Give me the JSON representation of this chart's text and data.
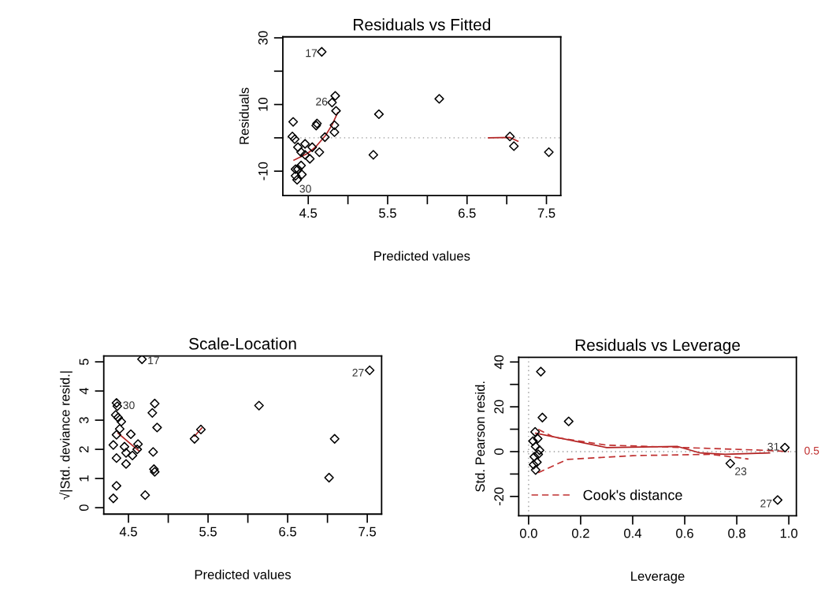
{
  "chart_data": [
    {
      "type": "scatter",
      "title": "Residuals vs Fitted",
      "xlabel": "Predicted values",
      "ylabel": "Residuals",
      "xlim": [
        4.18,
        7.68
      ],
      "ylim": [
        -17.3,
        30.3
      ],
      "xticks": [
        4.5,
        {
          "value": 5.0,
          "label": null
        },
        5.5,
        {
          "value": 6.0,
          "label": null
        },
        6.5,
        {
          "value": 7.0,
          "label": null
        },
        7.5
      ],
      "yticks": [
        -10,
        {
          "value": 0,
          "label": null
        },
        10,
        {
          "value": 20,
          "label": null
        },
        30
      ],
      "ref_lines": [
        {
          "axis": "y",
          "value": 0,
          "color": "#999999",
          "line_style": "dotted"
        }
      ],
      "series": [
        {
          "marker": "diamond",
          "color": "#000000",
          "x": [
            4.67,
            4.84,
            4.8,
            4.85,
            5.39,
            6.15,
            4.31,
            4.61,
            4.6,
            4.83,
            4.83,
            4.71,
            4.3,
            4.33,
            4.46,
            4.37,
            4.55,
            4.64,
            4.41,
            4.52,
            4.46,
            4.41,
            4.34,
            4.37,
            4.42,
            4.34,
            4.36,
            5.32,
            7.04,
            7.09,
            7.53
          ],
          "values": [
            25.8,
            12.6,
            10.6,
            8.1,
            7.1,
            11.7,
            4.8,
            4.3,
            3.7,
            3.8,
            1.7,
            0.2,
            0.4,
            -0.4,
            -1.8,
            -2.8,
            -2.8,
            -4.3,
            -4.3,
            -6.3,
            -5.1,
            -8.3,
            -9.4,
            -9.4,
            -11.0,
            -11.4,
            -12.6,
            -5.1,
            0.4,
            -2.5,
            -4.3
          ]
        },
        {
          "type": "line",
          "line_style": "solid",
          "color": "#b22222",
          "x": [
            4.32,
            4.49,
            4.59,
            4.72,
            4.8,
            4.87
          ],
          "values": [
            -6.7,
            -4.7,
            -2.8,
            0.8,
            3.9,
            7.5
          ]
        },
        {
          "type": "line",
          "line_style": "solid",
          "color": "#b22222",
          "x": [
            6.77,
            7.04,
            7.14
          ],
          "values": [
            0,
            0.1,
            -1.0
          ]
        }
      ],
      "annotations": [
        {
          "text": "17",
          "x": 4.67,
          "y": 25.8
        },
        {
          "text": "26",
          "x": 4.8,
          "y": 10.6
        },
        {
          "text": "30",
          "x": 4.36,
          "y": -12.6
        }
      ]
    },
    {
      "type": "scatter",
      "title": "Scale-Location",
      "xlabel": "Predicted values",
      "ylabel": "√|Std. deviance resid.|",
      "xlim": [
        4.19,
        7.68
      ],
      "ylim": [
        -0.22,
        5.2
      ],
      "xticks": [
        4.5,
        {
          "value": 5.0,
          "label": null
        },
        5.5,
        {
          "value": 6.0,
          "label": null
        },
        6.5,
        {
          "value": 7.0,
          "label": null
        },
        7.5
      ],
      "yticks": [
        0,
        1,
        2,
        3,
        4,
        5
      ],
      "series": [
        {
          "marker": "diamond",
          "color": "#000000",
          "x": [
            4.67,
            7.53,
            6.14,
            4.35,
            4.36,
            4.34,
            4.37,
            4.41,
            4.39,
            4.83,
            4.8,
            4.86,
            4.53,
            4.35,
            4.45,
            4.62,
            4.61,
            4.31,
            4.47,
            4.55,
            4.35,
            4.47,
            4.81,
            4.82,
            4.83,
            5.33,
            5.41,
            7.09,
            7.02,
            4.35,
            4.31,
            4.71
          ],
          "values": [
            5.09,
            4.71,
            3.5,
            3.59,
            3.48,
            3.18,
            3.09,
            2.95,
            2.7,
            3.57,
            3.25,
            2.75,
            2.52,
            2.5,
            2.09,
            2.18,
            2.0,
            2.15,
            1.88,
            1.79,
            1.7,
            1.5,
            1.91,
            1.32,
            1.23,
            2.36,
            2.68,
            2.36,
            1.03,
            0.75,
            0.32,
            0.43
          ]
        },
        {
          "type": "line",
          "line_style": "solid",
          "color": "#b22222",
          "x": [
            4.37,
            4.57,
            4.63
          ],
          "values": [
            2.55,
            2.09,
            1.95
          ]
        },
        {
          "type": "line",
          "line_style": "solid",
          "color": "#b22222",
          "x": [
            5.33,
            5.42
          ],
          "values": [
            2.45,
            2.73
          ]
        }
      ],
      "annotations": [
        {
          "text": "17",
          "x": 4.67,
          "y": 5.09
        },
        {
          "text": "27",
          "x": 7.53,
          "y": 4.71
        },
        {
          "text": "30",
          "x": 4.36,
          "y": 3.48
        }
      ]
    },
    {
      "type": "scatter",
      "title": "Residuals vs Leverage",
      "xlabel": "Leverage",
      "ylabel": "Std. Pearson resid.",
      "xlim": [
        -0.038,
        1.029
      ],
      "ylim": [
        -28.6,
        42.1
      ],
      "xticks": [
        {
          "value": 0,
          "label": "0.0"
        },
        0.2,
        0.4,
        0.6,
        0.8,
        {
          "value": 1,
          "label": "1.0"
        }
      ],
      "yticks": [
        -20,
        {
          "value": -10,
          "label": null
        },
        0,
        {
          "value": 10,
          "label": null
        },
        20,
        {
          "value": 30,
          "label": null
        },
        40
      ],
      "legend": "bottom left",
      "ref_lines": [
        {
          "axis": "y",
          "value": 0,
          "color": "#999999",
          "line_style": "dotted"
        },
        {
          "axis": "x",
          "value": 0,
          "color": "#999999",
          "line_style": "dotted"
        }
      ],
      "series": [
        {
          "marker": "diamond",
          "color": "#000000",
          "x": [
            0.047,
            0.053,
            0.154,
            0.025,
            0.035,
            0.027,
            0.042,
            0.022,
            0.019,
            0.027,
            0.775,
            0.985,
            0.957,
            0.017,
            0.032,
            0.037
          ],
          "values": [
            35.7,
            15.2,
            13.5,
            8.8,
            5.8,
            2.3,
            0.6,
            -2.3,
            -5.8,
            -8.2,
            -5.3,
            1.8,
            -21.6,
            4.7,
            -4.7,
            -1.2
          ]
        },
        {
          "type": "line",
          "line_style": "solid",
          "color": "#b22222",
          "x": [
            0.027,
            0.3,
            0.573,
            0.66,
            0.755,
            0.926
          ],
          "values": [
            8.2,
            1.8,
            2.3,
            -0.6,
            -1.2,
            -0.6
          ]
        },
        {
          "type": "line",
          "name": "Cook's distance",
          "line_style": "dashed",
          "color": "#c03030",
          "x": [
            0.037,
            0.098,
            0.3,
            0.6,
            0.906,
            1.0
          ],
          "values": [
            9.9,
            6.4,
            2.9,
            1.8,
            0.6,
            0
          ]
        },
        {
          "type": "line",
          "line_style": "dashed",
          "color": "#c03030",
          "x": [
            0.037,
            0.148,
            0.4,
            0.7,
            0.845
          ],
          "values": [
            -9.4,
            -3.5,
            -1.8,
            -1.2,
            -3.3
          ]
        }
      ],
      "annotations": [
        {
          "text": "23",
          "x": 0.775,
          "y": -5.3
        },
        {
          "text": "27",
          "x": 0.957,
          "y": -21.6
        },
        {
          "text": "31",
          "x": 0.985,
          "y": 1.8
        },
        {
          "text": "0.5",
          "x": 1.0,
          "y": 0
        }
      ]
    }
  ]
}
